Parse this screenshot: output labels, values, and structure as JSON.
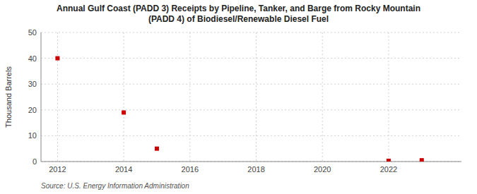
{
  "chart_data": {
    "type": "scatter",
    "title": "Annual Gulf Coast (PADD 3) Receipts by Pipeline, Tanker, and Barge from Rocky Mountain\n(PADD 4) of Biodiesel/Renewable Diesel Fuel",
    "ylabel": "Thousand Barrels",
    "source": "Source: U.S. Energy Information Administration",
    "x": [
      2012,
      2014,
      2015,
      2022,
      2023
    ],
    "values": [
      40,
      19,
      5,
      0.3,
      0.5
    ],
    "color": "#cc0000",
    "marker": "square",
    "xlim": [
      2011.5,
      2024.2
    ],
    "ylim": [
      0,
      50
    ],
    "xticks": [
      2012,
      2014,
      2016,
      2018,
      2020,
      2022
    ],
    "yticks": [
      0,
      10,
      20,
      30,
      40,
      50
    ],
    "grid": true
  }
}
